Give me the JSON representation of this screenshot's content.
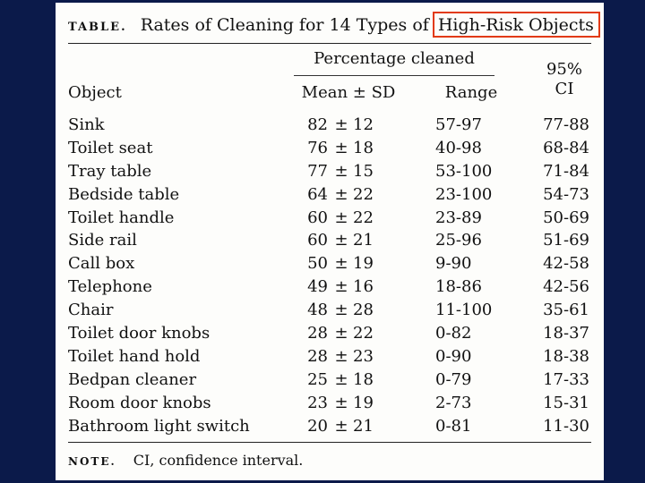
{
  "table": {
    "caption_label": "TABLE.",
    "title_prefix": "Rates of Cleaning for 14 Types of",
    "title_highlight": "High-Risk Objects",
    "spanner": "Percentage cleaned",
    "headers": {
      "object": "Object",
      "mean_sd": "Mean ± SD",
      "range": "Range",
      "ci_line1": "95%",
      "ci_line2": "CI"
    },
    "rows": [
      {
        "object": "Sink",
        "mean": "82",
        "pm": "±",
        "sd": "12",
        "range": "57-97",
        "ci": "77-88"
      },
      {
        "object": "Toilet seat",
        "mean": "76",
        "pm": "±",
        "sd": "18",
        "range": "40-98",
        "ci": "68-84"
      },
      {
        "object": "Tray table",
        "mean": "77",
        "pm": "±",
        "sd": "15",
        "range": "53-100",
        "ci": "71-84"
      },
      {
        "object": "Bedside table",
        "mean": "64",
        "pm": "±",
        "sd": "22",
        "range": "23-100",
        "ci": "54-73"
      },
      {
        "object": "Toilet handle",
        "mean": "60",
        "pm": "±",
        "sd": "22",
        "range": "23-89",
        "ci": "50-69"
      },
      {
        "object": "Side rail",
        "mean": "60",
        "pm": "±",
        "sd": "21",
        "range": "25-96",
        "ci": "51-69"
      },
      {
        "object": "Call box",
        "mean": "50",
        "pm": "±",
        "sd": "19",
        "range": "9-90",
        "ci": "42-58"
      },
      {
        "object": "Telephone",
        "mean": "49",
        "pm": "±",
        "sd": "16",
        "range": "18-86",
        "ci": "42-56"
      },
      {
        "object": "Chair",
        "mean": "48",
        "pm": "±",
        "sd": "28",
        "range": "11-100",
        "ci": "35-61"
      },
      {
        "object": "Toilet door knobs",
        "mean": "28",
        "pm": "±",
        "sd": "22",
        "range": "0-82",
        "ci": "18-37"
      },
      {
        "object": "Toilet hand hold",
        "mean": "28",
        "pm": "±",
        "sd": "23",
        "range": "0-90",
        "ci": "18-38"
      },
      {
        "object": "Bedpan cleaner",
        "mean": "25",
        "pm": "±",
        "sd": "18",
        "range": "0-79",
        "ci": "17-33"
      },
      {
        "object": "Room door knobs",
        "mean": "23",
        "pm": "±",
        "sd": "19",
        "range": "2-73",
        "ci": "15-31"
      },
      {
        "object": "Bathroom light switch",
        "mean": "20",
        "pm": "±",
        "sd": "21",
        "range": "0-81",
        "ci": "11-30"
      }
    ],
    "note_label": "NOTE.",
    "note_text": "CI, confidence interval."
  },
  "colors": {
    "background": "#0b1a4a",
    "paper": "#fdfdfb",
    "highlight_box": "#e23a12"
  }
}
